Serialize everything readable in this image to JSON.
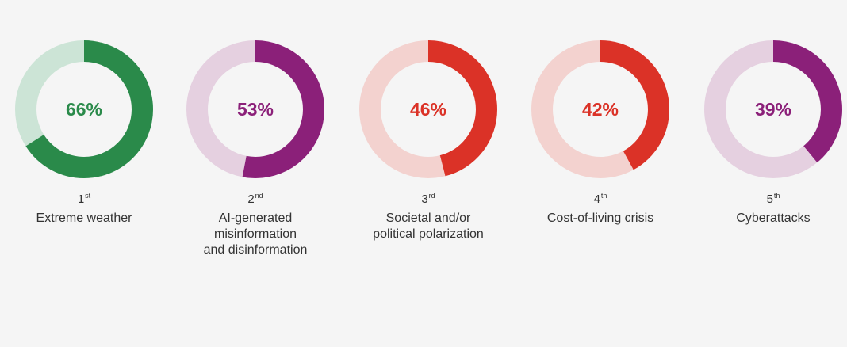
{
  "chart_data": {
    "type": "pie",
    "items": [
      {
        "rank": "1",
        "suffix": "st",
        "label": "Extreme weather",
        "value": 66,
        "value_label": "66%",
        "color": "#2a8a4a",
        "track_color": "#cce4d6"
      },
      {
        "rank": "2",
        "suffix": "nd",
        "label": "AI-generated\nmisinformation\nand disinformation",
        "value": 53,
        "value_label": "53%",
        "color": "#8b2079",
        "track_color": "#e5d0e0"
      },
      {
        "rank": "3",
        "suffix": "rd",
        "label": "Societal and/or\npolitical polarization",
        "value": 46,
        "value_label": "46%",
        "color": "#db3227",
        "track_color": "#f3d2cf"
      },
      {
        "rank": "4",
        "suffix": "th",
        "label": "Cost-of-living crisis",
        "value": 42,
        "value_label": "42%",
        "color": "#db3227",
        "track_color": "#f3d2cf"
      },
      {
        "rank": "5",
        "suffix": "th",
        "label": "Cyberattacks",
        "value": 39,
        "value_label": "39%",
        "color": "#8b2079",
        "track_color": "#e5d0e0"
      }
    ]
  }
}
